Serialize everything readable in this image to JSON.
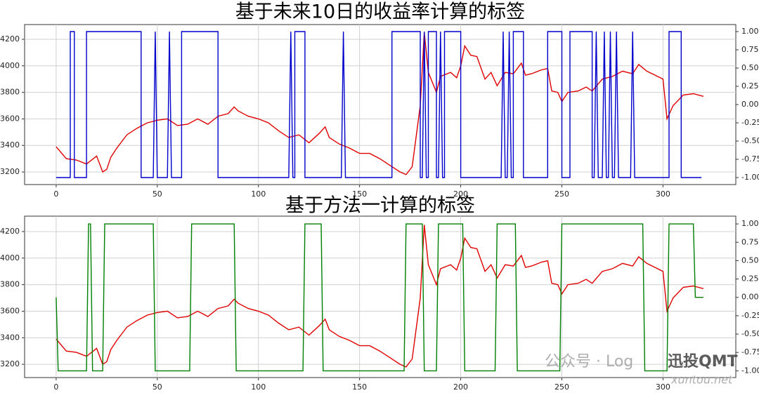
{
  "chart_data": [
    {
      "type": "line",
      "title": "基于未来10日的收益率计算的标签",
      "xlim": [
        -15.6,
        336
      ],
      "xticks": [
        0,
        50,
        100,
        150,
        200,
        250,
        300
      ],
      "ylim": [
        3105,
        4311
      ],
      "yticks": [
        3200,
        3400,
        3600,
        3800,
        4000,
        4200
      ],
      "y2lim": [
        -1.096,
        1.096
      ],
      "y2ticks": [
        {
          "value": -1,
          "label": "-1.00"
        },
        {
          "value": -0.75,
          "label": "-0.75"
        },
        {
          "value": -0.5,
          "label": "-0.50"
        },
        {
          "value": -0.25,
          "label": "-0.25"
        },
        {
          "value": 0,
          "label": "0.00"
        },
        {
          "value": 0.25,
          "label": "0.25"
        },
        {
          "value": 0.5,
          "label": "0.50"
        },
        {
          "value": 0.75,
          "label": "0.75"
        },
        {
          "value": 1,
          "label": "1.00"
        }
      ],
      "grid": true,
      "series": [
        {
          "color": "#0000cc",
          "axis": "y2",
          "x": [
            0,
            7,
            7,
            9,
            9,
            15,
            15,
            42,
            42,
            48,
            49,
            50,
            55,
            56,
            57,
            62,
            62,
            80,
            80,
            115,
            116,
            117,
            118,
            118,
            123,
            123,
            141,
            142,
            143,
            166,
            166,
            180,
            180,
            181,
            182,
            183,
            184,
            184,
            188,
            188,
            189,
            190,
            191,
            192,
            192,
            200,
            200,
            220,
            221,
            222,
            223,
            224,
            225,
            226,
            226,
            231,
            231,
            243,
            243,
            250,
            250,
            254,
            254,
            265,
            265,
            266,
            267,
            268,
            270,
            271,
            272,
            273,
            274,
            275,
            276,
            277,
            278,
            284,
            285,
            286,
            303,
            303,
            309,
            309,
            319
          ],
          "values": [
            -1,
            -1,
            1,
            1,
            -1,
            -1,
            1,
            1,
            -1,
            -1,
            1,
            -1,
            -1,
            1,
            -1,
            -1,
            1,
            1,
            -1,
            -1,
            1,
            -1,
            -1,
            1,
            1,
            -1,
            -1,
            1,
            -1,
            -1,
            1,
            1,
            -1,
            -1,
            1,
            -1,
            -1,
            1,
            1,
            -1,
            -1,
            1,
            -1,
            -1,
            1,
            1,
            -1,
            -1,
            1,
            -1,
            -1,
            1,
            -1,
            -1,
            1,
            1,
            -1,
            -1,
            1,
            1,
            -1,
            -1,
            1,
            1,
            -1,
            -1,
            1,
            -1,
            -1,
            1,
            -1,
            -1,
            1,
            -1,
            -1,
            1,
            -1,
            -1,
            1,
            -1,
            -1,
            1,
            1,
            -1,
            -1
          ]
        },
        {
          "color": "#e00000",
          "axis": "y",
          "x": [
            0,
            5,
            10,
            15,
            20,
            23,
            25,
            27,
            30,
            35,
            40,
            45,
            50,
            55,
            60,
            65,
            70,
            75,
            80,
            85,
            88,
            90,
            95,
            100,
            105,
            110,
            115,
            120,
            125,
            130,
            133,
            135,
            140,
            145,
            150,
            155,
            160,
            165,
            170,
            173,
            176,
            180,
            182,
            184,
            188,
            190,
            195,
            198,
            200,
            202,
            205,
            208,
            212,
            215,
            218,
            222,
            226,
            230,
            232,
            235,
            240,
            243,
            245,
            248,
            250,
            253,
            258,
            262,
            265,
            270,
            275,
            280,
            285,
            288,
            292,
            296,
            300,
            302,
            305,
            310,
            315,
            320
          ],
          "values": [
            3390,
            3300,
            3290,
            3260,
            3320,
            3200,
            3220,
            3310,
            3380,
            3480,
            3530,
            3570,
            3590,
            3600,
            3550,
            3560,
            3600,
            3560,
            3620,
            3640,
            3690,
            3660,
            3620,
            3600,
            3570,
            3510,
            3460,
            3480,
            3420,
            3490,
            3540,
            3460,
            3410,
            3380,
            3340,
            3340,
            3300,
            3250,
            3200,
            3180,
            3240,
            3700,
            4250,
            3950,
            3800,
            3920,
            3950,
            3910,
            4000,
            4150,
            4080,
            4070,
            3900,
            3950,
            3850,
            3950,
            3940,
            4020,
            3930,
            3940,
            3970,
            3980,
            3810,
            3800,
            3730,
            3800,
            3810,
            3840,
            3810,
            3900,
            3920,
            3960,
            3940,
            4010,
            3960,
            3930,
            3900,
            3600,
            3700,
            3780,
            3790,
            3770
          ]
        }
      ]
    },
    {
      "type": "line",
      "title": "基于方法一计算的标签",
      "xlim": [
        -15.6,
        336
      ],
      "xticks": [
        0,
        50,
        100,
        150,
        200,
        250,
        300
      ],
      "ylim": [
        3100,
        4316
      ],
      "yticks": [
        3200,
        3400,
        3600,
        3800,
        4000,
        4200
      ],
      "y2lim": [
        -1.092,
        1.106
      ],
      "y2ticks": [
        {
          "value": -1,
          "label": "-1.00"
        },
        {
          "value": -0.75,
          "label": "-0.75"
        },
        {
          "value": -0.5,
          "label": "-0.50"
        },
        {
          "value": -0.25,
          "label": "-0.25"
        },
        {
          "value": 0,
          "label": "0.00"
        },
        {
          "value": 0.25,
          "label": "0.25"
        },
        {
          "value": 0.5,
          "label": "0.50"
        },
        {
          "value": 0.75,
          "label": "0.75"
        },
        {
          "value": 1,
          "label": "1.00"
        }
      ],
      "grid": true,
      "series": [
        {
          "color": "#008000",
          "axis": "y2",
          "x": [
            0,
            1,
            15,
            16,
            17,
            18,
            23,
            24,
            48,
            49,
            66,
            67,
            88,
            89,
            122,
            123,
            131,
            132,
            172,
            173,
            181,
            182,
            188,
            189,
            201,
            202,
            217,
            218,
            227,
            228,
            249,
            250,
            290,
            291,
            302,
            303,
            315,
            316,
            320
          ],
          "values": [
            0,
            -1,
            -1,
            1,
            1,
            -1,
            -1,
            1,
            1,
            -1,
            -1,
            1,
            1,
            -1,
            -1,
            1,
            1,
            -1,
            -1,
            1,
            1,
            -1,
            -1,
            1,
            1,
            -1,
            -1,
            1,
            1,
            -1,
            -1,
            1,
            1,
            -1,
            -1,
            1,
            1,
            0,
            0
          ]
        },
        {
          "color": "#e00000",
          "axis": "y",
          "x": [
            0,
            5,
            10,
            15,
            20,
            23,
            25,
            27,
            30,
            35,
            40,
            45,
            50,
            55,
            60,
            65,
            70,
            75,
            80,
            85,
            88,
            90,
            95,
            100,
            105,
            110,
            115,
            120,
            125,
            130,
            133,
            135,
            140,
            145,
            150,
            155,
            160,
            165,
            170,
            173,
            176,
            180,
            182,
            184,
            188,
            190,
            195,
            198,
            200,
            202,
            205,
            208,
            212,
            215,
            218,
            222,
            226,
            230,
            232,
            235,
            240,
            243,
            245,
            248,
            250,
            253,
            258,
            262,
            265,
            270,
            275,
            280,
            285,
            288,
            292,
            296,
            300,
            302,
            305,
            310,
            315,
            320
          ],
          "values": [
            3390,
            3300,
            3290,
            3260,
            3320,
            3200,
            3220,
            3310,
            3380,
            3480,
            3530,
            3570,
            3590,
            3600,
            3550,
            3560,
            3600,
            3560,
            3620,
            3640,
            3690,
            3660,
            3620,
            3600,
            3570,
            3510,
            3460,
            3480,
            3420,
            3490,
            3540,
            3460,
            3410,
            3380,
            3340,
            3340,
            3300,
            3250,
            3200,
            3180,
            3240,
            3700,
            4250,
            3950,
            3800,
            3920,
            3950,
            3910,
            4000,
            4150,
            4080,
            4070,
            3900,
            3950,
            3850,
            3950,
            3940,
            4020,
            3930,
            3940,
            3970,
            3980,
            3810,
            3800,
            3730,
            3800,
            3810,
            3840,
            3810,
            3900,
            3920,
            3960,
            3940,
            4010,
            3960,
            3930,
            3900,
            3600,
            3700,
            3780,
            3790,
            3770
          ]
        }
      ]
    }
  ],
  "watermark": [
    "公众号 · Log",
    "迅投QMT",
    "xuntou.net"
  ]
}
